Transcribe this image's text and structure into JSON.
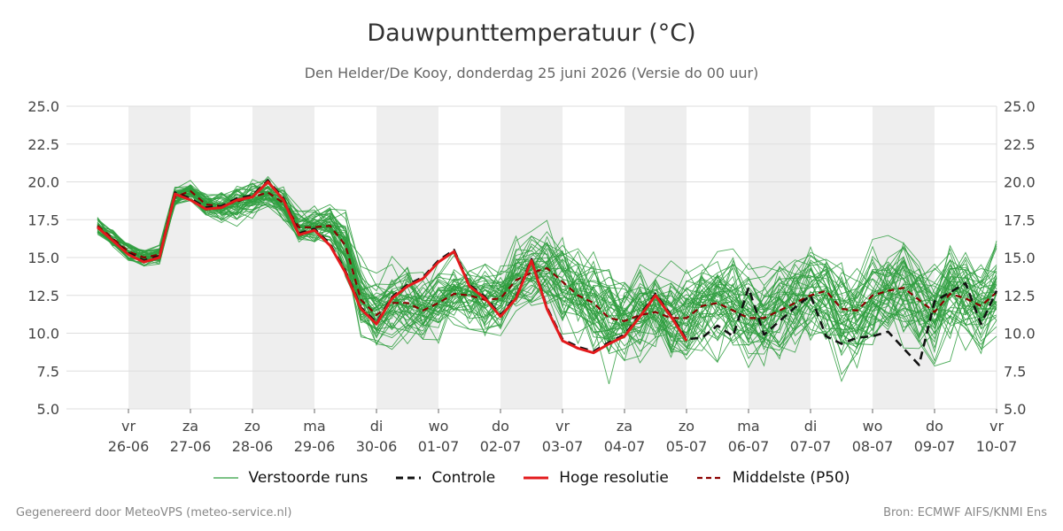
{
  "header": {
    "title": "Dauwpunttemperatuur (°C)",
    "subtitle": "Den Helder/De Kooy, donderdag 25 juni 2026 (Versie do 00 uur)"
  },
  "footer": {
    "left": "Gegenereerd door MeteoVPS (meteo-service.nl)",
    "right": "Bron: ECMWF AIFS/KNMI Ens"
  },
  "legend": {
    "perturbed": "Verstoorde runs",
    "control": "Controle",
    "highres": "Hoge resolutie",
    "median": "Middelste (P50)"
  },
  "chart_data": {
    "type": "line",
    "title": "Dauwpunttemperatuur (°C)",
    "subtitle": "Den Helder/De Kooy, donderdag 25 juni 2026 (Versie do 00 uur)",
    "x_unit": "days since 25-06 00:00",
    "xlim": [
      0,
      15
    ],
    "ylim": [
      5.0,
      25.0
    ],
    "yticks": [
      5.0,
      7.5,
      10.0,
      12.5,
      15.0,
      17.5,
      20.0,
      22.5,
      25.0
    ],
    "grid": true,
    "legend_position": "bottom",
    "xticks": [
      {
        "day": "vr",
        "date": "26-06",
        "x": 1
      },
      {
        "day": "za",
        "date": "27-06",
        "x": 2
      },
      {
        "day": "zo",
        "date": "28-06",
        "x": 3
      },
      {
        "day": "ma",
        "date": "29-06",
        "x": 4
      },
      {
        "day": "di",
        "date": "30-06",
        "x": 5
      },
      {
        "day": "wo",
        "date": "01-07",
        "x": 6
      },
      {
        "day": "do",
        "date": "02-07",
        "x": 7
      },
      {
        "day": "vr",
        "date": "03-07",
        "x": 8
      },
      {
        "day": "za",
        "date": "04-07",
        "x": 9
      },
      {
        "day": "zo",
        "date": "05-07",
        "x": 10
      },
      {
        "day": "ma",
        "date": "06-07",
        "x": 11
      },
      {
        "day": "di",
        "date": "07-07",
        "x": 12
      },
      {
        "day": "wo",
        "date": "08-07",
        "x": 13
      },
      {
        "day": "do",
        "date": "09-07",
        "x": 14
      },
      {
        "day": "vr",
        "date": "10-07",
        "x": 15
      }
    ],
    "weekend_bands": [
      [
        1,
        2
      ],
      [
        3,
        4
      ],
      [
        5,
        6
      ],
      [
        7,
        8
      ],
      [
        9,
        10
      ],
      [
        11,
        12
      ],
      [
        13,
        14
      ]
    ],
    "colors": {
      "perturbed": "#2e9e3e",
      "control": "#111111",
      "highres": "#e31a1c",
      "median": "#8b0000",
      "band": "#eeeeee",
      "grid": "#dddddd"
    },
    "perturbed_count": 50,
    "series": [
      {
        "name": "Hoge resolutie",
        "x": [
          0.5,
          1.0,
          1.25,
          1.5,
          1.75,
          2.0,
          2.25,
          2.5,
          2.75,
          3.0,
          3.25,
          3.5,
          3.75,
          4.0,
          4.25,
          4.5,
          4.75,
          5.0,
          5.25,
          5.5,
          5.75,
          6.0,
          6.25,
          6.5,
          6.75,
          7.0,
          7.25,
          7.5,
          7.75,
          8.0,
          8.25,
          8.5,
          8.75,
          9.0,
          9.25,
          9.5,
          9.75,
          10.0
        ],
        "y": [
          17.0,
          15.2,
          14.7,
          15.0,
          19.2,
          18.8,
          18.2,
          18.3,
          18.8,
          19.0,
          20.0,
          18.8,
          16.5,
          16.8,
          15.8,
          14.0,
          11.6,
          10.6,
          12.3,
          13.1,
          13.6,
          14.7,
          15.4,
          13.1,
          12.3,
          11.1,
          12.3,
          14.8,
          11.6,
          9.5,
          9.0,
          8.7,
          9.3,
          9.8,
          11.1,
          12.5,
          11.1,
          9.5
        ]
      },
      {
        "name": "Controle",
        "x": [
          0.5,
          1.0,
          1.25,
          1.5,
          1.75,
          2.0,
          2.25,
          2.5,
          2.75,
          3.0,
          3.25,
          3.5,
          3.75,
          4.0,
          4.25,
          4.5,
          4.75,
          5.0,
          5.25,
          5.5,
          5.75,
          6.0,
          6.25,
          6.5,
          6.75,
          7.0,
          7.25,
          7.5,
          7.75,
          8.0,
          8.25,
          8.5,
          8.75,
          9.0,
          9.25,
          9.5,
          9.75,
          10.0,
          10.25,
          10.5,
          10.75,
          11.0,
          11.25,
          11.5,
          11.75,
          12.0,
          12.25,
          12.5,
          12.75,
          13.0,
          13.25,
          13.5,
          13.75,
          14.0,
          14.25,
          14.5,
          14.75,
          15.0
        ],
        "y": [
          17.0,
          15.3,
          14.8,
          15.1,
          19.3,
          18.9,
          18.3,
          18.4,
          18.9,
          19.1,
          20.1,
          18.9,
          16.6,
          16.9,
          15.9,
          14.1,
          11.7,
          10.7,
          12.4,
          13.2,
          13.7,
          14.8,
          15.5,
          13.2,
          12.4,
          11.2,
          12.4,
          14.9,
          11.7,
          9.6,
          9.1,
          8.8,
          9.4,
          9.9,
          11.2,
          12.6,
          11.2,
          9.6,
          9.7,
          10.5,
          9.8,
          13.0,
          9.9,
          10.8,
          11.7,
          12.5,
          9.8,
          9.3,
          9.7,
          9.8,
          10.1,
          9.0,
          7.9,
          12.1,
          12.7,
          13.3,
          10.6,
          12.8
        ]
      },
      {
        "name": "Middelste (P50)",
        "x": [
          0.5,
          1.0,
          1.25,
          1.5,
          1.75,
          2.0,
          2.25,
          2.5,
          2.75,
          3.0,
          3.25,
          3.5,
          3.75,
          4.0,
          4.25,
          4.5,
          4.75,
          5.0,
          5.25,
          5.5,
          5.75,
          6.0,
          6.25,
          6.5,
          6.75,
          7.0,
          7.25,
          7.5,
          7.75,
          8.0,
          8.25,
          8.5,
          8.75,
          9.0,
          9.25,
          9.5,
          9.75,
          10.0,
          10.25,
          10.5,
          10.75,
          11.0,
          11.25,
          11.5,
          11.75,
          12.0,
          12.25,
          12.5,
          12.75,
          13.0,
          13.25,
          13.5,
          13.75,
          14.0,
          14.25,
          14.5,
          14.75,
          15.0
        ],
        "y": [
          17.1,
          15.4,
          15.0,
          15.2,
          19.0,
          19.4,
          18.5,
          18.4,
          18.7,
          19.0,
          19.3,
          18.6,
          17.0,
          17.0,
          17.1,
          15.8,
          12.2,
          11.2,
          12.0,
          12.0,
          11.5,
          12.0,
          12.6,
          12.5,
          12.2,
          12.3,
          13.5,
          14.0,
          14.3,
          13.4,
          12.5,
          12.0,
          11.0,
          10.8,
          11.2,
          11.4,
          11.0,
          11.0,
          11.8,
          12.0,
          11.5,
          11.0,
          11.0,
          11.5,
          12.0,
          12.5,
          12.8,
          11.6,
          11.5,
          12.5,
          12.8,
          13.0,
          12.2,
          11.4,
          12.6,
          12.3,
          11.8,
          12.7
        ]
      }
    ]
  }
}
